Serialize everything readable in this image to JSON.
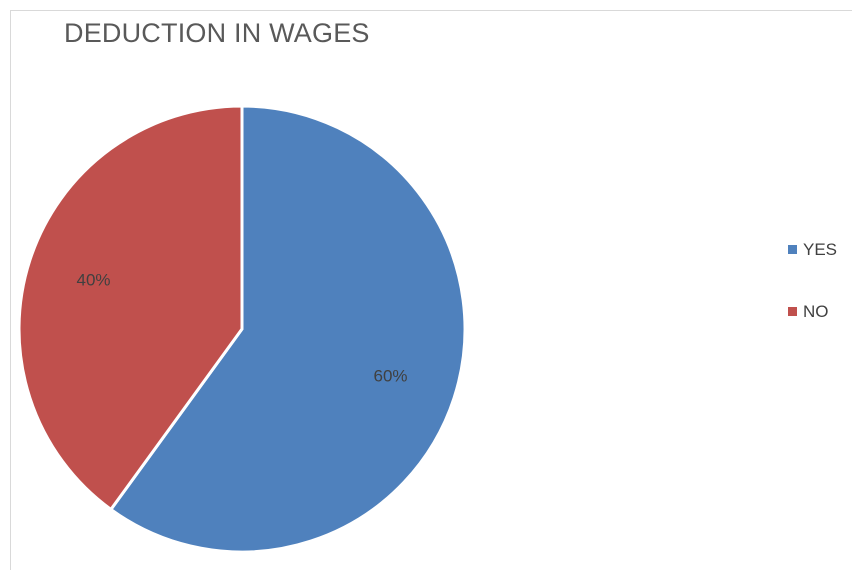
{
  "chart_data": {
    "type": "pie",
    "title": "DEDUCTION IN WAGES",
    "categories": [
      "YES",
      "NO"
    ],
    "values": [
      60,
      40
    ],
    "data_labels": [
      "60%",
      "40%"
    ],
    "colors": [
      "#4F81BD",
      "#C0504D"
    ],
    "legend": {
      "position": "right",
      "entries": [
        "YES",
        "NO"
      ]
    }
  }
}
